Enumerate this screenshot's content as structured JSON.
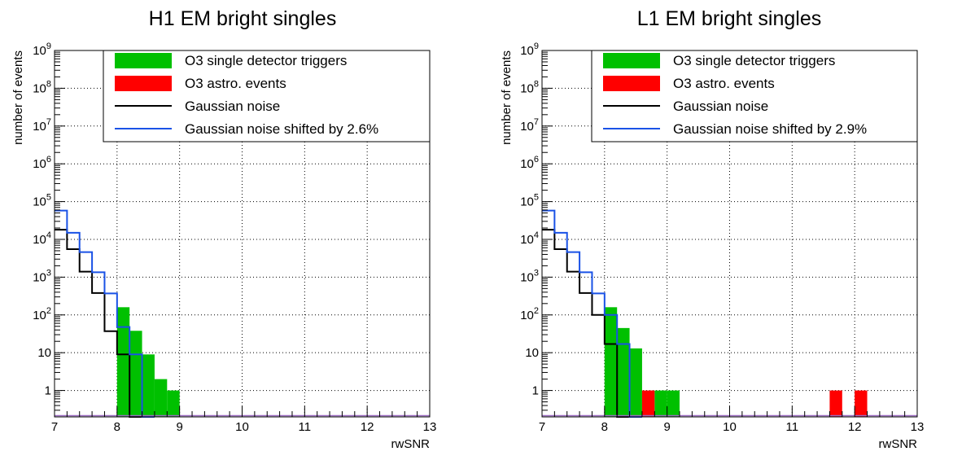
{
  "chart_data": [
    {
      "type": "histogram",
      "title": "H1 EM bright singles",
      "xlabel": "rwSNR",
      "ylabel": "number of events",
      "xlim": [
        7,
        13
      ],
      "ylim": [
        0.2,
        1000000000
      ],
      "yscale": "log",
      "grid": true,
      "legend_position": "top-right",
      "x_ticks": [
        "7",
        "8",
        "9",
        "10",
        "11",
        "12",
        "13"
      ],
      "y_ticks": [
        {
          "base": "",
          "exp": "",
          "label": "1",
          "value": 1
        },
        {
          "base": "",
          "exp": "",
          "label": "10",
          "value": 10
        },
        {
          "base": "10",
          "exp": "2",
          "label": "",
          "value": 100
        },
        {
          "base": "10",
          "exp": "3",
          "label": "",
          "value": 1000
        },
        {
          "base": "10",
          "exp": "4",
          "label": "",
          "value": 10000
        },
        {
          "base": "10",
          "exp": "5",
          "label": "",
          "value": 100000
        },
        {
          "base": "10",
          "exp": "6",
          "label": "",
          "value": 1000000
        },
        {
          "base": "10",
          "exp": "7",
          "label": "",
          "value": 10000000
        },
        {
          "base": "10",
          "exp": "8",
          "label": "",
          "value": 100000000
        },
        {
          "base": "10",
          "exp": "9",
          "label": "",
          "value": 1000000000
        }
      ],
      "bin_edges": [
        7.0,
        7.2,
        7.4,
        7.6,
        7.8,
        8.0,
        8.2,
        8.4,
        8.6,
        8.8,
        9.0
      ],
      "series": [
        {
          "name": "O3 single detector triggers",
          "style": "fill",
          "color": "#00c000",
          "bins": [
            [
              8.0,
              8.2,
              160
            ],
            [
              8.2,
              8.4,
              38
            ],
            [
              8.4,
              8.6,
              9
            ],
            [
              8.6,
              8.8,
              2
            ],
            [
              8.8,
              9.0,
              1
            ]
          ]
        },
        {
          "name": "O3 astro. events",
          "style": "fill",
          "color": "#ff0000",
          "bins": []
        },
        {
          "name": "Gaussian noise",
          "style": "step",
          "color": "#000000",
          "values": [
            18000,
            5500,
            1400,
            380,
            37,
            9,
            0.2
          ]
        },
        {
          "name": "Gaussian noise shifted by 2.6%",
          "style": "step",
          "color": "#1a52e6",
          "values": [
            58000,
            15000,
            4600,
            1350,
            370,
            48,
            9,
            0.2
          ]
        }
      ]
    },
    {
      "type": "histogram",
      "title": "L1 EM bright singles",
      "xlabel": "rwSNR",
      "ylabel": "number of events",
      "xlim": [
        7,
        13
      ],
      "ylim": [
        0.2,
        1000000000
      ],
      "yscale": "log",
      "grid": true,
      "legend_position": "top-right",
      "x_ticks": [
        "7",
        "8",
        "9",
        "10",
        "11",
        "12",
        "13"
      ],
      "y_ticks": [
        {
          "base": "",
          "exp": "",
          "label": "1",
          "value": 1
        },
        {
          "base": "",
          "exp": "",
          "label": "10",
          "value": 10
        },
        {
          "base": "10",
          "exp": "2",
          "label": "",
          "value": 100
        },
        {
          "base": "10",
          "exp": "3",
          "label": "",
          "value": 1000
        },
        {
          "base": "10",
          "exp": "4",
          "label": "",
          "value": 10000
        },
        {
          "base": "10",
          "exp": "5",
          "label": "",
          "value": 100000
        },
        {
          "base": "10",
          "exp": "6",
          "label": "",
          "value": 1000000
        },
        {
          "base": "10",
          "exp": "7",
          "label": "",
          "value": 10000000
        },
        {
          "base": "10",
          "exp": "8",
          "label": "",
          "value": 100000000
        },
        {
          "base": "10",
          "exp": "9",
          "label": "",
          "value": 1000000000
        }
      ],
      "bin_edges": [
        7.0,
        7.2,
        7.4,
        7.6,
        7.8,
        8.0,
        8.2,
        8.4,
        8.6,
        8.8,
        9.0
      ],
      "series": [
        {
          "name": "O3 single detector triggers",
          "style": "fill",
          "color": "#00c000",
          "bins": [
            [
              8.0,
              8.2,
              160
            ],
            [
              8.2,
              8.4,
              45
            ],
            [
              8.4,
              8.6,
              13
            ],
            [
              8.8,
              9.0,
              1
            ],
            [
              9.0,
              9.2,
              1
            ]
          ]
        },
        {
          "name": "O3 astro. events",
          "style": "fill",
          "color": "#ff0000",
          "bins": [
            [
              8.6,
              8.8,
              1
            ],
            [
              11.6,
              11.8,
              1
            ],
            [
              12.0,
              12.2,
              1
            ]
          ]
        },
        {
          "name": "Gaussian noise",
          "style": "step",
          "color": "#000000",
          "values": [
            18000,
            5500,
            1400,
            380,
            100,
            17,
            0.2
          ]
        },
        {
          "name": "Gaussian noise shifted by 2.9%",
          "style": "step",
          "color": "#1a52e6",
          "values": [
            58000,
            15000,
            4600,
            1350,
            370,
            100,
            17,
            0.2
          ]
        }
      ]
    }
  ]
}
